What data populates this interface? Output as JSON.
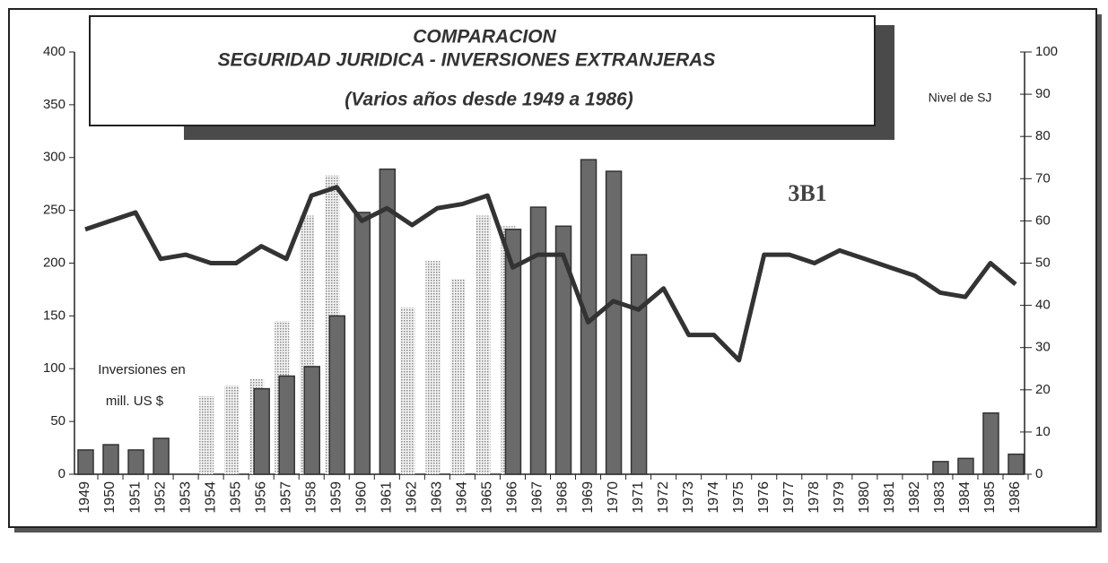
{
  "chart_data": {
    "type": "bar_line",
    "title": "COMPARACION",
    "subtitle": "SEGURIDAD JURIDICA - INVERSIONES EXTRANJERAS",
    "subtitle2": "(Varios años desde 1949 a 1986)",
    "annotation": "3B1",
    "y_label": [
      "Inversiones en",
      "mill. US $"
    ],
    "y2_label": "Nivel de SJ",
    "categories": [
      "1949",
      "1950",
      "1951",
      "1952",
      "1953",
      "1954",
      "1955",
      "1956",
      "1957",
      "1958",
      "1959",
      "1960",
      "1961",
      "1962",
      "1963",
      "1964",
      "1965",
      "1966",
      "1967",
      "1968",
      "1969",
      "1970",
      "1971",
      "1972",
      "1973",
      "1974",
      "1975",
      "1976",
      "1977",
      "1978",
      "1979",
      "1980",
      "1981",
      "1982",
      "1983",
      "1984",
      "1985",
      "1986"
    ],
    "series": [
      {
        "color": "#c8c8c8",
        "style": "dotted",
        "values": [
          null,
          null,
          null,
          null,
          null,
          74,
          84,
          90,
          145,
          245,
          283,
          null,
          null,
          158,
          202,
          185,
          245,
          235,
          null,
          null,
          null,
          null,
          null,
          null,
          null,
          null,
          null,
          null,
          null,
          null,
          null,
          null,
          null,
          null,
          null,
          null,
          null,
          null
        ]
      },
      {
        "color": "#6a6a6a",
        "style": "solid",
        "values": [
          23,
          28,
          23,
          34,
          null,
          null,
          null,
          81,
          93,
          102,
          150,
          248,
          289,
          null,
          null,
          null,
          null,
          232,
          253,
          235,
          298,
          287,
          208,
          null,
          null,
          null,
          null,
          null,
          null,
          null,
          null,
          null,
          null,
          null,
          12,
          15,
          58,
          19
        ]
      },
      {
        "color": "#333333",
        "style": "line",
        "axis": "y2",
        "values": [
          58,
          60,
          62,
          51,
          52,
          50,
          50,
          54,
          51,
          66,
          68,
          60,
          63,
          59,
          63,
          64,
          66,
          49,
          52,
          52,
          36,
          41,
          39,
          44,
          33,
          33,
          27,
          52,
          52,
          50,
          53,
          51,
          49,
          47,
          43,
          42,
          50,
          45
        ]
      }
    ],
    "ylim": [
      0,
      400
    ],
    "yticks": [
      0,
      50,
      100,
      150,
      200,
      250,
      300,
      350,
      400
    ],
    "y2lim": [
      0,
      100
    ],
    "y2ticks": [
      0,
      10,
      20,
      30,
      40,
      50,
      60,
      70,
      80,
      90,
      100
    ]
  }
}
